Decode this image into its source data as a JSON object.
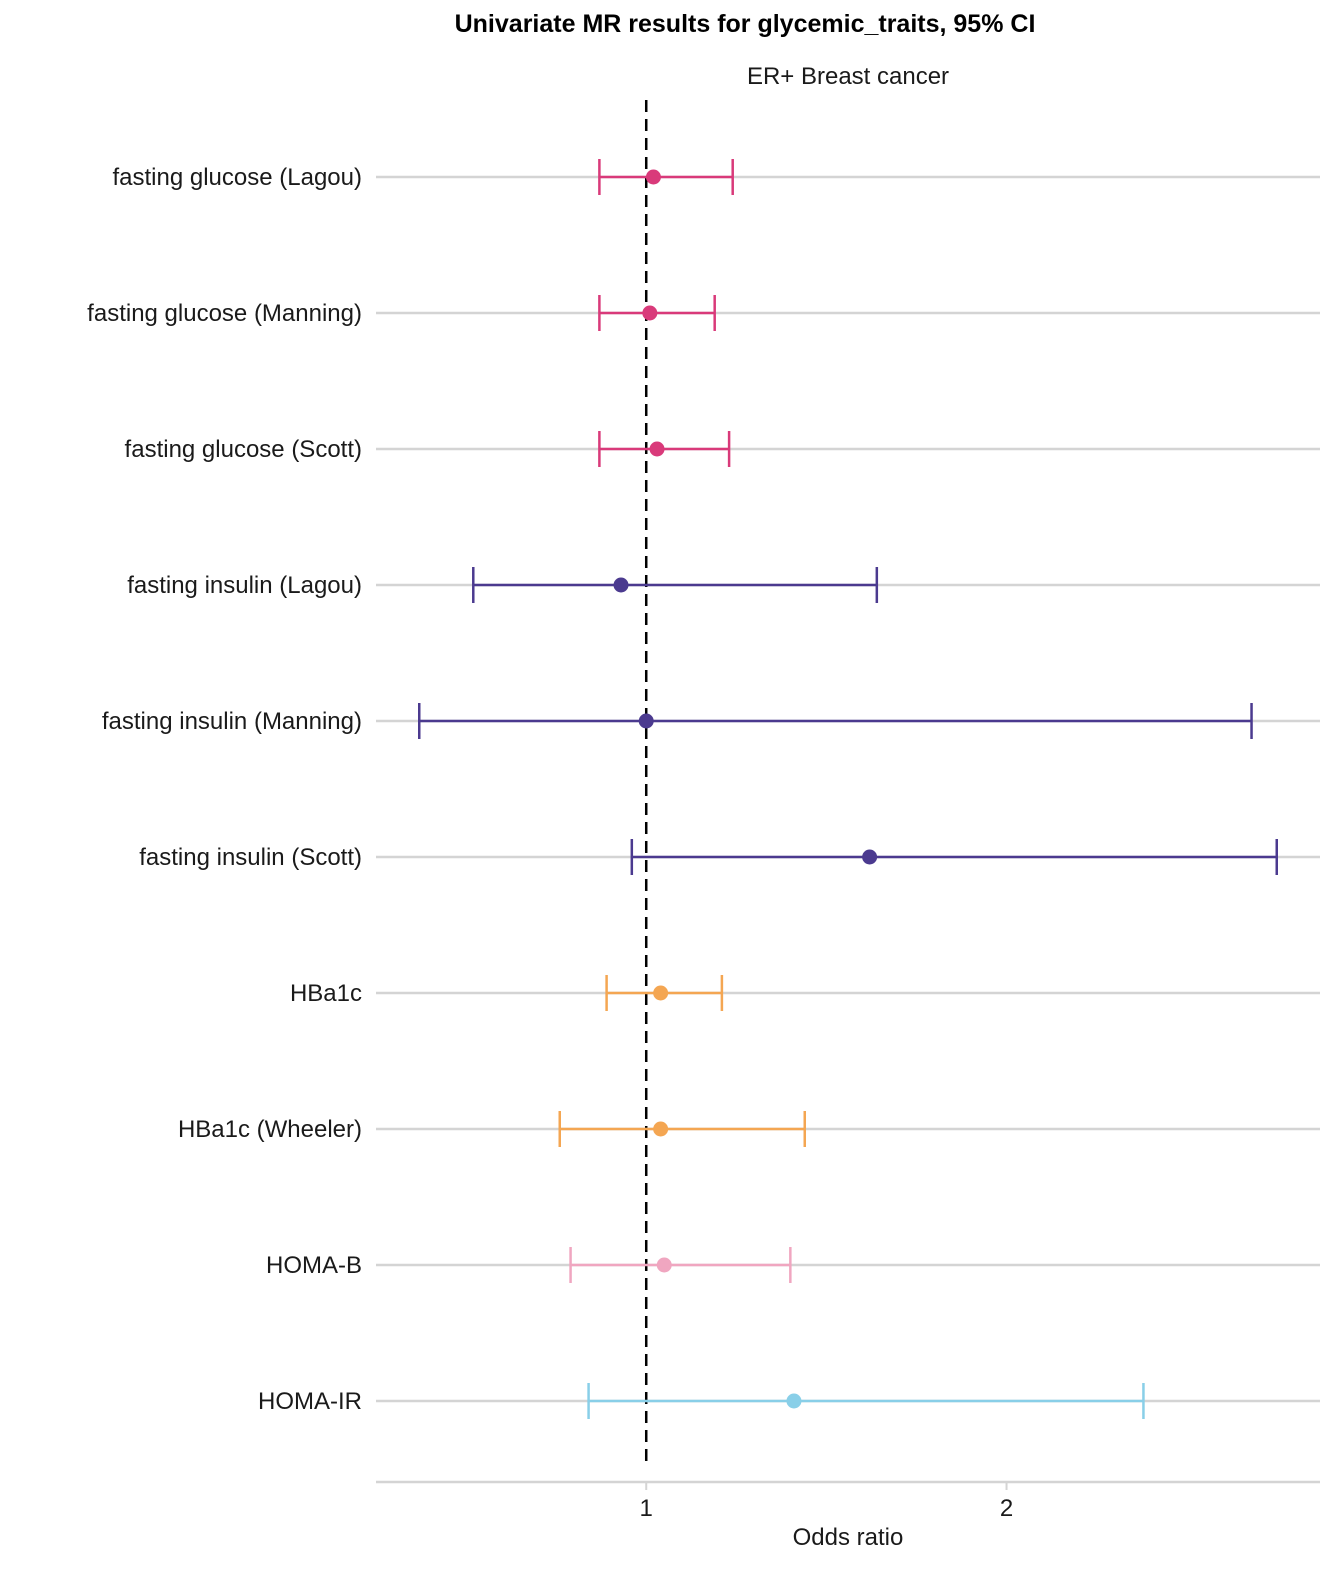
{
  "chart_data": {
    "type": "forest",
    "title": "Univariate MR results for glycemic_traits, 95% CI",
    "subtitle": "ER+ Breast cancer",
    "xlabel": "Odds ratio",
    "ylabel": "",
    "xlim": [
      0.25,
      2.87
    ],
    "x_ticks": [
      1,
      2
    ],
    "x_tick_labels": [
      "1",
      "2"
    ],
    "reference_line": 1,
    "grid": "horizontal",
    "rows": [
      {
        "label": "fasting glucose (Lagou)",
        "or": 1.02,
        "lower": 0.87,
        "upper": 1.24,
        "color": "#d93a7a"
      },
      {
        "label": "fasting glucose (Manning)",
        "or": 1.01,
        "lower": 0.87,
        "upper": 1.19,
        "color": "#d93a7a"
      },
      {
        "label": "fasting glucose (Scott)",
        "or": 1.03,
        "lower": 0.87,
        "upper": 1.23,
        "color": "#d93a7a"
      },
      {
        "label": "fasting insulin (Lagou)",
        "or": 0.93,
        "lower": 0.52,
        "upper": 1.64,
        "color": "#4b3a8f"
      },
      {
        "label": "fasting insulin (Manning)",
        "or": 1.0,
        "lower": 0.37,
        "upper": 2.68,
        "color": "#4b3a8f"
      },
      {
        "label": "fasting insulin (Scott)",
        "or": 1.62,
        "lower": 0.96,
        "upper": 2.75,
        "color": "#4b3a8f"
      },
      {
        "label": "HBa1c",
        "or": 1.04,
        "lower": 0.89,
        "upper": 1.21,
        "color": "#f4a652"
      },
      {
        "label": "HBa1c (Wheeler)",
        "or": 1.04,
        "lower": 0.76,
        "upper": 1.44,
        "color": "#f4a652"
      },
      {
        "label": "HOMA-B",
        "or": 1.05,
        "lower": 0.79,
        "upper": 1.4,
        "color": "#f0a6c0"
      },
      {
        "label": "HOMA-IR",
        "or": 1.41,
        "lower": 0.84,
        "upper": 2.38,
        "color": "#89cfe8"
      }
    ]
  }
}
